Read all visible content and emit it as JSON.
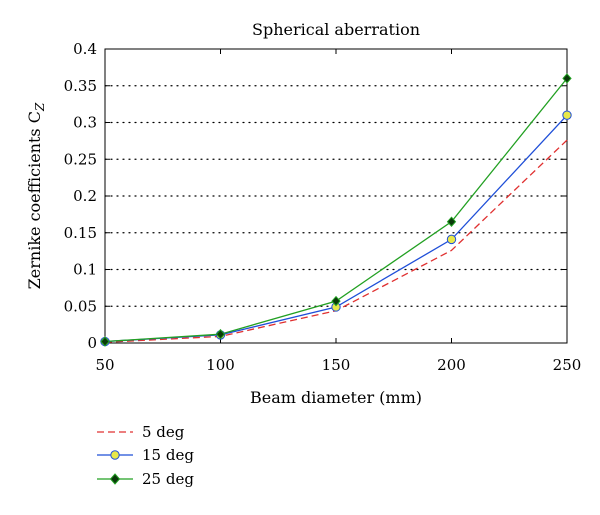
{
  "chart_data": {
    "type": "line",
    "title": "Spherical aberration",
    "xlabel": "Beam diameter (mm)",
    "ylabel_main": "Zernike coefficients C",
    "ylabel_sub": "Z",
    "xlim": [
      50,
      250
    ],
    "ylim": [
      0,
      0.4
    ],
    "x_ticks": [
      50,
      100,
      150,
      200,
      250
    ],
    "y_ticks": [
      0,
      0.05,
      0.1,
      0.15,
      0.2,
      0.25,
      0.3,
      0.35,
      0.4
    ],
    "y_tick_labels": [
      "0",
      "0.05",
      "0.1",
      "0.15",
      "0.2",
      "0.25",
      "0.3",
      "0.35",
      "0.4"
    ],
    "grid": "horizontal-dotted",
    "legend_position": "bottom-left-outside",
    "x": [
      50,
      100,
      150,
      200,
      250
    ],
    "series": [
      {
        "name": "5 deg",
        "values": [
          0.001,
          0.009,
          0.044,
          0.126,
          0.276
        ],
        "color": "#e03030",
        "style": "dashed",
        "marker": "none"
      },
      {
        "name": "15 deg",
        "values": [
          0.002,
          0.011,
          0.049,
          0.141,
          0.31
        ],
        "color": "#1f4fd8",
        "style": "solid",
        "marker": "circle",
        "marker_fill": "#e8e84a"
      },
      {
        "name": "25 deg",
        "values": [
          0.002,
          0.012,
          0.057,
          0.165,
          0.36
        ],
        "color": "#22a022",
        "style": "solid",
        "marker": "diamond",
        "marker_fill": "#0a3a0a"
      }
    ]
  }
}
